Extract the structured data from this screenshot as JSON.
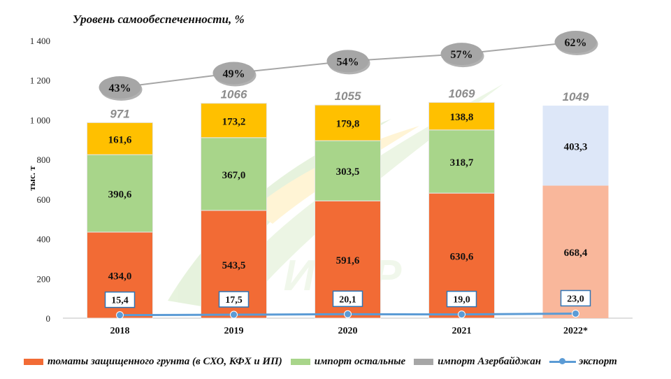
{
  "chart_data": {
    "type": "bar",
    "title": "Уровень самообеспеченности, %",
    "ylabel": "тыс. т",
    "ylim": [
      0,
      1400
    ],
    "yticks": [
      "0",
      "200",
      "400",
      "600",
      "800",
      "1 000",
      "1 200",
      "1 400"
    ],
    "categories": [
      "2018",
      "2019",
      "2020",
      "2021",
      "2022*"
    ],
    "series": [
      {
        "name": "томаты защищенного грунта (в СХО, КФХ и ИП)",
        "color": "#f26b35",
        "values": [
          434.0,
          543.5,
          591.6,
          630.6,
          668.4
        ],
        "labels": [
          "434,0",
          "543,5",
          "591,6",
          "630,6",
          "668,4"
        ]
      },
      {
        "name": "импорт остальные",
        "color": "#a8d58a",
        "values": [
          390.6,
          367.0,
          303.5,
          318.7,
          403.3
        ],
        "labels": [
          "390,6",
          "367,0",
          "303,5",
          "318,7",
          "403,3"
        ]
      },
      {
        "name": "импорт Азербайджан",
        "color": "#ffc000",
        "values": [
          161.6,
          173.2,
          179.8,
          138.8,
          null
        ],
        "labels": [
          "161,6",
          "173,2",
          "179,8",
          "138,8",
          ""
        ]
      }
    ],
    "projection_colors": {
      "bottom": "#f9b79b",
      "middle": "#dde7f8"
    },
    "legend_swatch_azerbaijan": "#a6a6a6",
    "totals": [
      "971",
      "1066",
      "1055",
      "1069",
      "1049"
    ],
    "export": {
      "name": "экспорт",
      "color": "#5b9bd5",
      "values": [
        15.4,
        17.5,
        20.1,
        19.0,
        23.0
      ],
      "labels": [
        "15,4",
        "17,5",
        "20,1",
        "19,0",
        "23,0"
      ]
    },
    "self_sufficiency": {
      "values": [
        43,
        49,
        54,
        57,
        62
      ],
      "labels": [
        "43%",
        "49%",
        "54%",
        "57%",
        "62%"
      ]
    },
    "watermark": "ИКАР",
    "legend_placement": "bottom"
  }
}
